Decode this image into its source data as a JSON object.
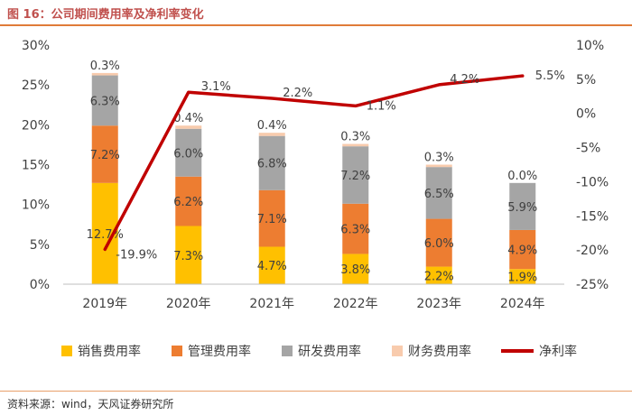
{
  "header": {
    "title": "图 16：公司期间费用率及净利率变化"
  },
  "footer": {
    "source": "资料来源：wind，天风证券研究所"
  },
  "chart_data": {
    "type": "bar",
    "stacked": true,
    "categories": [
      "2019年",
      "2020年",
      "2021年",
      "2022年",
      "2023年",
      "2024年"
    ],
    "series": [
      {
        "name": "销售费用率",
        "color": "#ffc000",
        "values": [
          12.7,
          7.3,
          4.7,
          3.8,
          2.2,
          1.9
        ],
        "labels": [
          "12.7%",
          "7.3%",
          "4.7%",
          "3.8%",
          "2.2%",
          "1.9%"
        ]
      },
      {
        "name": "管理费用率",
        "color": "#ed7d31",
        "values": [
          7.2,
          6.2,
          7.1,
          6.3,
          6.0,
          4.9
        ],
        "labels": [
          "7.2%",
          "6.2%",
          "7.1%",
          "6.3%",
          "6.0%",
          "4.9%"
        ]
      },
      {
        "name": "研发费用率",
        "color": "#a5a5a5",
        "values": [
          6.3,
          6.0,
          6.8,
          7.2,
          6.5,
          5.9
        ],
        "labels": [
          "6.3%",
          "6.0%",
          "6.8%",
          "7.2%",
          "6.5%",
          "5.9%"
        ]
      },
      {
        "name": "财务费用率",
        "color": "#f8cbad",
        "values": [
          0.3,
          0.4,
          0.4,
          0.3,
          0.3,
          0.0
        ],
        "labels": [
          "0.3%",
          "0.4%",
          "0.4%",
          "0.3%",
          "0.3%",
          "0.0%"
        ]
      }
    ],
    "line": {
      "name": "净利率",
      "color": "#c00000",
      "axis": "right",
      "values": [
        -19.9,
        3.1,
        2.2,
        1.1,
        4.2,
        5.5
      ],
      "labels": [
        "-19.9%",
        "3.1%",
        "2.2%",
        "1.1%",
        "4.2%",
        "5.5%"
      ]
    },
    "y_left": {
      "min": 0,
      "max": 30,
      "step": 5,
      "ticks": [
        "0%",
        "5%",
        "10%",
        "15%",
        "20%",
        "25%",
        "30%"
      ]
    },
    "y_right": {
      "min": -25,
      "max": 10,
      "step": 5,
      "ticks": [
        "-25%",
        "-20%",
        "-15%",
        "-10%",
        "-5%",
        "0%",
        "5%",
        "10%"
      ]
    },
    "legend": {
      "position": "bottom",
      "items": [
        "销售费用率",
        "管理费用率",
        "研发费用率",
        "财务费用率",
        "净利率"
      ]
    },
    "grid": false
  }
}
